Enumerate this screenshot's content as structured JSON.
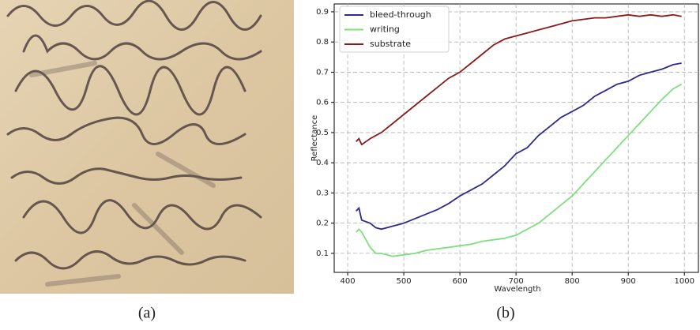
{
  "chart_data": {
    "type": "line",
    "xlabel": "Wavelength",
    "ylabel": "Reflectance",
    "x": [
      415,
      420,
      425,
      440,
      450,
      460,
      480,
      500,
      520,
      540,
      560,
      580,
      600,
      620,
      640,
      660,
      680,
      700,
      720,
      740,
      760,
      780,
      800,
      820,
      840,
      860,
      880,
      900,
      920,
      940,
      960,
      980,
      995
    ],
    "series": [
      {
        "name": "bleed-through",
        "color": "#2e2b8c",
        "values": [
          0.24,
          0.25,
          0.21,
          0.2,
          0.185,
          0.18,
          0.19,
          0.2,
          0.215,
          0.23,
          0.245,
          0.265,
          0.29,
          0.31,
          0.33,
          0.36,
          0.39,
          0.43,
          0.45,
          0.49,
          0.52,
          0.55,
          0.57,
          0.59,
          0.62,
          0.64,
          0.66,
          0.67,
          0.69,
          0.7,
          0.71,
          0.725,
          0.73
        ]
      },
      {
        "name": "writing",
        "color": "#7de07d",
        "values": [
          0.17,
          0.18,
          0.17,
          0.12,
          0.1,
          0.1,
          0.09,
          0.095,
          0.1,
          0.11,
          0.115,
          0.12,
          0.125,
          0.13,
          0.14,
          0.145,
          0.15,
          0.16,
          0.18,
          0.2,
          0.23,
          0.26,
          0.29,
          0.33,
          0.37,
          0.41,
          0.45,
          0.49,
          0.53,
          0.57,
          0.61,
          0.645,
          0.66
        ]
      },
      {
        "name": "substrate",
        "color": "#8b1a1a",
        "values": [
          0.47,
          0.48,
          0.46,
          0.48,
          0.49,
          0.5,
          0.53,
          0.56,
          0.59,
          0.62,
          0.65,
          0.68,
          0.7,
          0.73,
          0.76,
          0.79,
          0.81,
          0.82,
          0.83,
          0.84,
          0.85,
          0.86,
          0.87,
          0.875,
          0.88,
          0.88,
          0.885,
          0.89,
          0.885,
          0.89,
          0.885,
          0.89,
          0.885
        ]
      }
    ],
    "xlim": [
      376,
      1025
    ],
    "xticks": [
      400,
      500,
      600,
      700,
      800,
      900,
      1000
    ],
    "ylim": [
      0.037,
      0.926
    ],
    "yticks": [
      0.1,
      0.2,
      0.3,
      0.4,
      0.5,
      0.6,
      0.7,
      0.8,
      0.9
    ],
    "grid": true,
    "legend": "upper-left"
  },
  "captions": [
    "(a)",
    "(b)"
  ]
}
